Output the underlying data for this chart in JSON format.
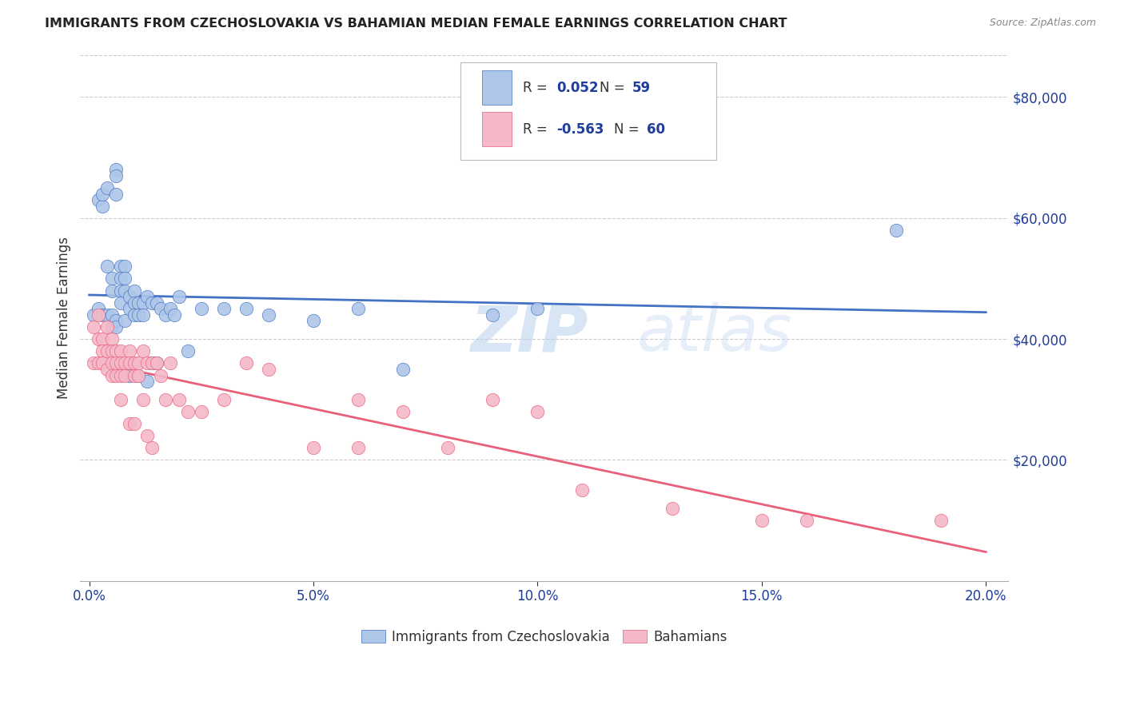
{
  "title": "IMMIGRANTS FROM CZECHOSLOVAKIA VS BAHAMIAN MEDIAN FEMALE EARNINGS CORRELATION CHART",
  "source": "Source: ZipAtlas.com",
  "ylabel": "Median Female Earnings",
  "xlabel_ticks": [
    "0.0%",
    "5.0%",
    "10.0%",
    "15.0%",
    "20.0%"
  ],
  "xlabel_vals": [
    0.0,
    0.05,
    0.1,
    0.15,
    0.2
  ],
  "ytick_labels": [
    "$20,000",
    "$40,000",
    "$60,000",
    "$80,000"
  ],
  "ytick_vals": [
    20000,
    40000,
    60000,
    80000
  ],
  "ylim": [
    0,
    87000
  ],
  "xlim": [
    -0.002,
    0.205
  ],
  "legend_label1": "Immigrants from Czechoslovakia",
  "legend_label2": "Bahamians",
  "r1": "0.052",
  "n1": "59",
  "r2": "-0.563",
  "n2": "60",
  "color_blue": "#aec6e8",
  "color_pink": "#f5b8c8",
  "line_color_blue": "#4472c4",
  "line_color_pink": "#e8607a",
  "text_color_rn": "#1f3d99",
  "text_color_pink_rn": "#cc2255",
  "watermark": "ZIPatlas",
  "blue_scatter_x": [
    0.001,
    0.002,
    0.002,
    0.003,
    0.003,
    0.003,
    0.004,
    0.004,
    0.004,
    0.005,
    0.005,
    0.005,
    0.005,
    0.006,
    0.006,
    0.006,
    0.006,
    0.006,
    0.007,
    0.007,
    0.007,
    0.007,
    0.008,
    0.008,
    0.008,
    0.008,
    0.009,
    0.009,
    0.009,
    0.01,
    0.01,
    0.01,
    0.011,
    0.011,
    0.011,
    0.012,
    0.012,
    0.013,
    0.013,
    0.014,
    0.014,
    0.015,
    0.015,
    0.016,
    0.017,
    0.018,
    0.019,
    0.02,
    0.022,
    0.025,
    0.03,
    0.035,
    0.04,
    0.05,
    0.06,
    0.07,
    0.09,
    0.1,
    0.18
  ],
  "blue_scatter_y": [
    44000,
    45000,
    63000,
    62000,
    64000,
    44000,
    65000,
    52000,
    44000,
    50000,
    48000,
    44000,
    42000,
    68000,
    67000,
    64000,
    43000,
    42000,
    52000,
    50000,
    48000,
    46000,
    52000,
    50000,
    48000,
    43000,
    47000,
    45000,
    34000,
    48000,
    46000,
    44000,
    46000,
    44000,
    34000,
    46000,
    44000,
    47000,
    33000,
    46000,
    36000,
    46000,
    36000,
    45000,
    44000,
    45000,
    44000,
    47000,
    38000,
    45000,
    45000,
    45000,
    44000,
    43000,
    45000,
    35000,
    44000,
    45000,
    58000
  ],
  "pink_scatter_x": [
    0.001,
    0.001,
    0.002,
    0.002,
    0.002,
    0.003,
    0.003,
    0.003,
    0.004,
    0.004,
    0.004,
    0.005,
    0.005,
    0.005,
    0.005,
    0.006,
    0.006,
    0.006,
    0.007,
    0.007,
    0.007,
    0.007,
    0.008,
    0.008,
    0.009,
    0.009,
    0.009,
    0.01,
    0.01,
    0.01,
    0.011,
    0.011,
    0.012,
    0.012,
    0.013,
    0.013,
    0.014,
    0.014,
    0.015,
    0.016,
    0.017,
    0.018,
    0.02,
    0.022,
    0.025,
    0.03,
    0.035,
    0.04,
    0.05,
    0.06,
    0.06,
    0.07,
    0.08,
    0.09,
    0.1,
    0.11,
    0.13,
    0.15,
    0.16,
    0.19
  ],
  "pink_scatter_y": [
    42000,
    36000,
    44000,
    40000,
    36000,
    40000,
    38000,
    36000,
    42000,
    38000,
    35000,
    40000,
    38000,
    36000,
    34000,
    38000,
    36000,
    34000,
    38000,
    36000,
    34000,
    30000,
    36000,
    34000,
    38000,
    36000,
    26000,
    36000,
    34000,
    26000,
    36000,
    34000,
    38000,
    30000,
    36000,
    24000,
    36000,
    22000,
    36000,
    34000,
    30000,
    36000,
    30000,
    28000,
    28000,
    30000,
    36000,
    35000,
    22000,
    30000,
    22000,
    28000,
    22000,
    30000,
    28000,
    15000,
    12000,
    10000,
    10000,
    10000
  ]
}
